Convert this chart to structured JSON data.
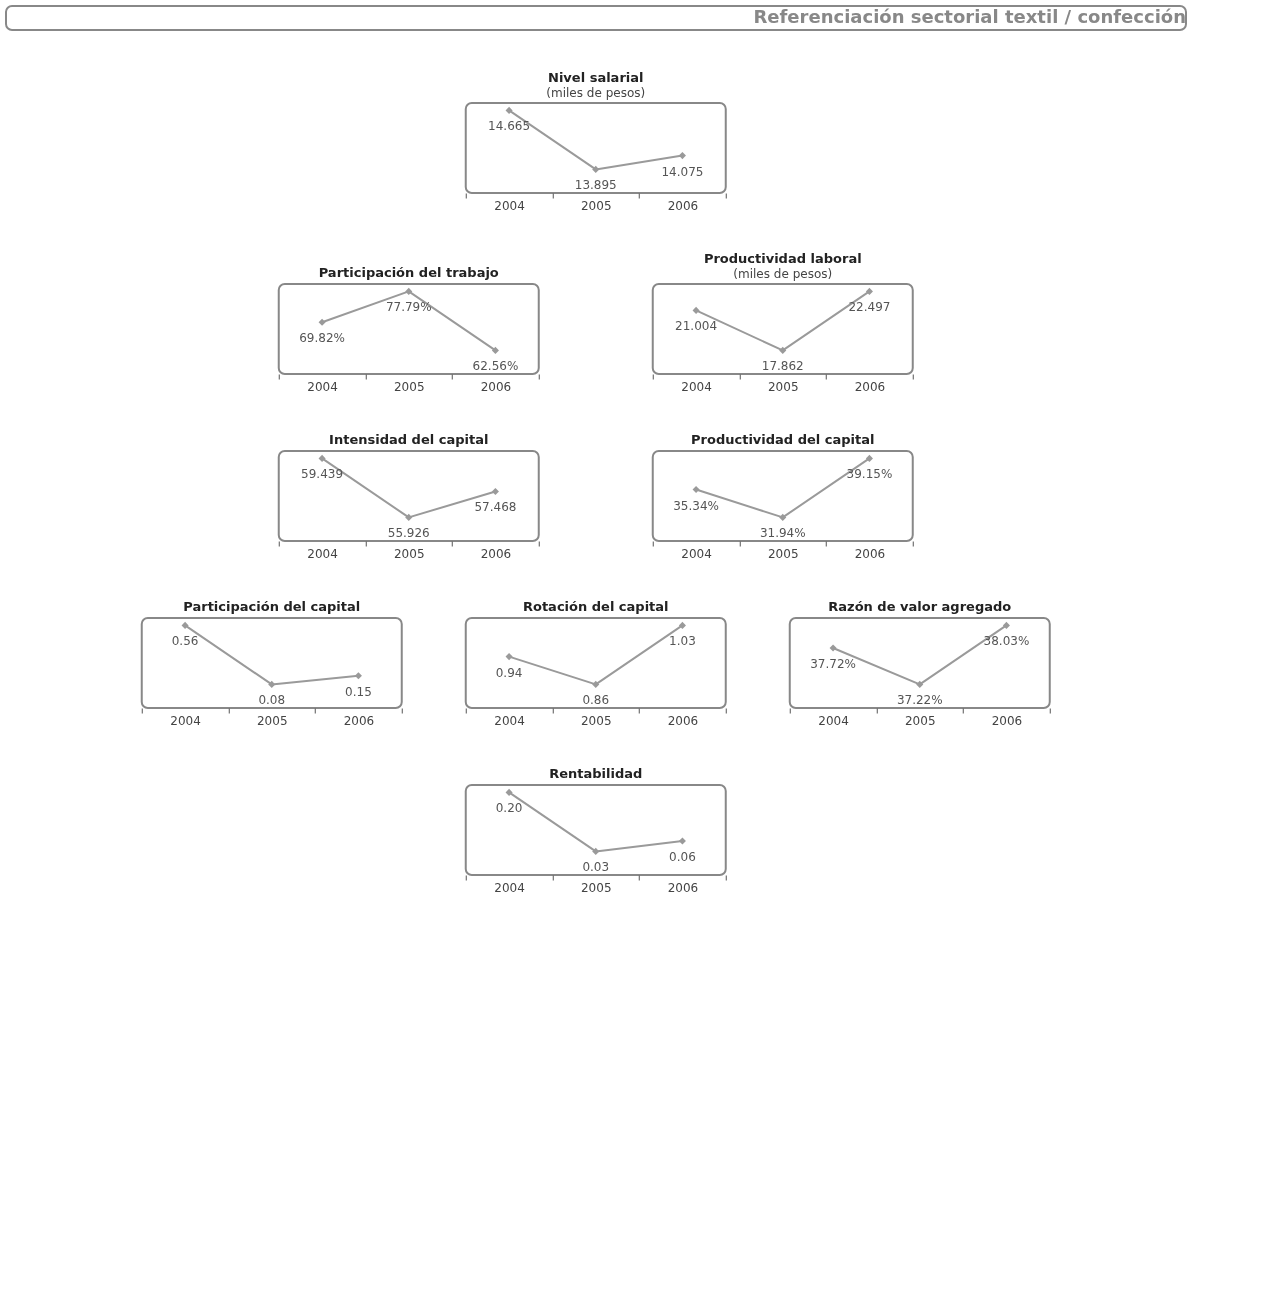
{
  "chart_data": [
    {
      "type": "line",
      "title": "Nivel salarial",
      "subtitle": "(miles de pesos)",
      "annotations": [
        "Referenciación sectorial textil / confección"
      ],
      "categories": [
        "2004",
        "2005",
        "2006"
      ],
      "values": [
        14.665,
        13.895,
        14.075
      ],
      "value_labels": [
        "14.665",
        "13.895",
        "14.075"
      ],
      "color": "#9a9a9a",
      "marker": "diamond"
    },
    {
      "type": "line",
      "title": "Participación del trabajo",
      "categories": [
        "2004",
        "2005",
        "2006"
      ],
      "values": [
        69.82,
        77.79,
        62.56
      ],
      "value_labels": [
        "69.82%",
        "77.79%",
        "62.56%"
      ],
      "color": "#9a9a9a",
      "marker": "diamond"
    },
    {
      "type": "line",
      "title": "Productividad laboral",
      "subtitle": "(miles de pesos)",
      "categories": [
        "2004",
        "2005",
        "2006"
      ],
      "values": [
        21.004,
        17.862,
        22.497
      ],
      "value_labels": [
        "21.004",
        "17.862",
        "22.497"
      ],
      "color": "#9a9a9a",
      "marker": "diamond"
    },
    {
      "type": "line",
      "title": "Intensidad del capital",
      "categories": [
        "2004",
        "2005",
        "2006"
      ],
      "values": [
        59.439,
        55.926,
        57.468
      ],
      "value_labels": [
        "59.439",
        "55.926",
        "57.468"
      ],
      "color": "#9a9a9a",
      "marker": "diamond"
    },
    {
      "type": "line",
      "title": "Productividad del capital",
      "categories": [
        "2004",
        "2005",
        "2006"
      ],
      "values": [
        35.34,
        31.94,
        39.15
      ],
      "value_labels": [
        "35.34%",
        "31.94%",
        "39.15%"
      ],
      "color": "#9a9a9a",
      "marker": "diamond"
    },
    {
      "type": "line",
      "title": "Participación del capital",
      "categories": [
        "2004",
        "2005",
        "2006"
      ],
      "values": [
        0.56,
        0.08,
        0.15
      ],
      "value_labels": [
        "0.56",
        "0.08",
        "0.15"
      ],
      "color": "#9a9a9a",
      "marker": "diamond"
    },
    {
      "type": "line",
      "title": "Rotación del capital",
      "categories": [
        "2004",
        "2005",
        "2006"
      ],
      "values": [
        0.94,
        0.86,
        1.03
      ],
      "value_labels": [
        "0.94",
        "0.86",
        "1.03"
      ],
      "color": "#9a9a9a",
      "marker": "diamond"
    },
    {
      "type": "line",
      "title": "Razón de valor agregado",
      "categories": [
        "2004",
        "2005",
        "2006"
      ],
      "values": [
        37.72,
        37.22,
        38.03
      ],
      "value_labels": [
        "37.72%",
        "37.22%",
        "38.03%"
      ],
      "color": "#9a9a9a",
      "marker": "diamond"
    },
    {
      "type": "line",
      "title": "Rentabilidad",
      "categories": [
        "2004",
        "2005",
        "2006"
      ],
      "values": [
        0.2,
        0.03,
        0.06
      ],
      "value_labels": [
        "0.20",
        "0.03",
        "0.06"
      ],
      "color": "#9a9a9a",
      "marker": "diamond"
    }
  ]
}
